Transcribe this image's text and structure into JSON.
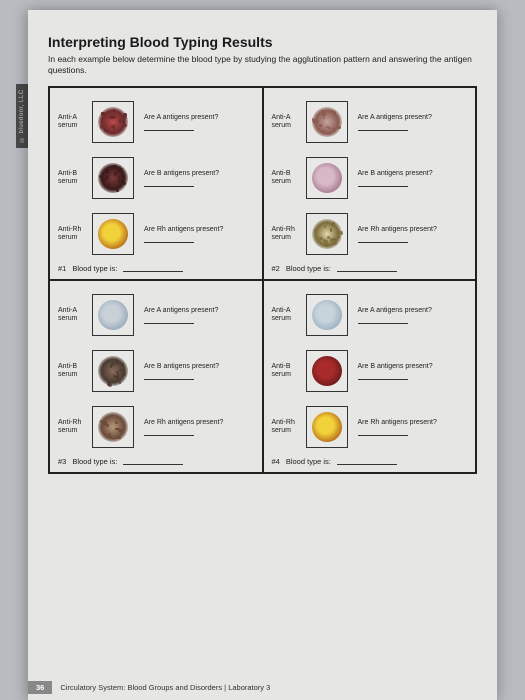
{
  "side_tab": "© bluedoor, LLC",
  "title": "Interpreting Blood Typing Results",
  "instructions": "In each example below determine the blood type by studying the agglutination pattern and answering the antigen questions.",
  "serum_labels": {
    "a": "Anti-A\nserum",
    "b": "Anti-B\nserum",
    "rh": "Anti-Rh\nserum"
  },
  "questions": {
    "a": "Are A antigens present?",
    "b": "Are B antigens present?",
    "rh": "Are Rh antigens present?"
  },
  "quads": [
    {
      "id": "#1",
      "footer": "Blood type is:",
      "rows": [
        {
          "serum": "a",
          "type": "agglutinated",
          "color_center": "#b84a4a",
          "color_edge": "#6a2a2a"
        },
        {
          "serum": "b",
          "type": "agglutinated",
          "color_center": "#7a3a3a",
          "color_edge": "#3a1a1a"
        },
        {
          "serum": "rh",
          "type": "smooth",
          "color_center": "#f2d23a",
          "color_edge": "#b86a1a"
        }
      ]
    },
    {
      "id": "#2",
      "footer": "Blood type is:",
      "rows": [
        {
          "serum": "a",
          "type": "agglutinated",
          "color_center": "#c6a4a0",
          "color_edge": "#8a5a50"
        },
        {
          "serum": "b",
          "type": "smooth",
          "color_center": "#d8b8c6",
          "color_edge": "#a87a90"
        },
        {
          "serum": "rh",
          "type": "agglutinated",
          "color_center": "#e0d8a8",
          "color_edge": "#7a6a3a"
        }
      ]
    },
    {
      "id": "#3",
      "footer": "Blood type is:",
      "rows": [
        {
          "serum": "a",
          "type": "smooth",
          "color_center": "#c8d0d8",
          "color_edge": "#9aaab8"
        },
        {
          "serum": "b",
          "type": "agglutinated",
          "color_center": "#8a6a5a",
          "color_edge": "#4a3a30"
        },
        {
          "serum": "rh",
          "type": "agglutinated",
          "color_center": "#b89a7a",
          "color_edge": "#6a4a3a"
        }
      ]
    },
    {
      "id": "#4",
      "footer": "Blood type is:",
      "rows": [
        {
          "serum": "a",
          "type": "smooth",
          "color_center": "#c8d4dc",
          "color_edge": "#9ab0c0"
        },
        {
          "serum": "b",
          "type": "smooth",
          "color_center": "#a82a2a",
          "color_edge": "#6a1a1a"
        },
        {
          "serum": "rh",
          "type": "smooth",
          "color_center": "#f2d23a",
          "color_edge": "#b86a1a"
        }
      ]
    }
  ],
  "page_footer": {
    "number": "36",
    "text": "Circulatory System: Blood Groups and Disorders | Laboratory 3"
  }
}
